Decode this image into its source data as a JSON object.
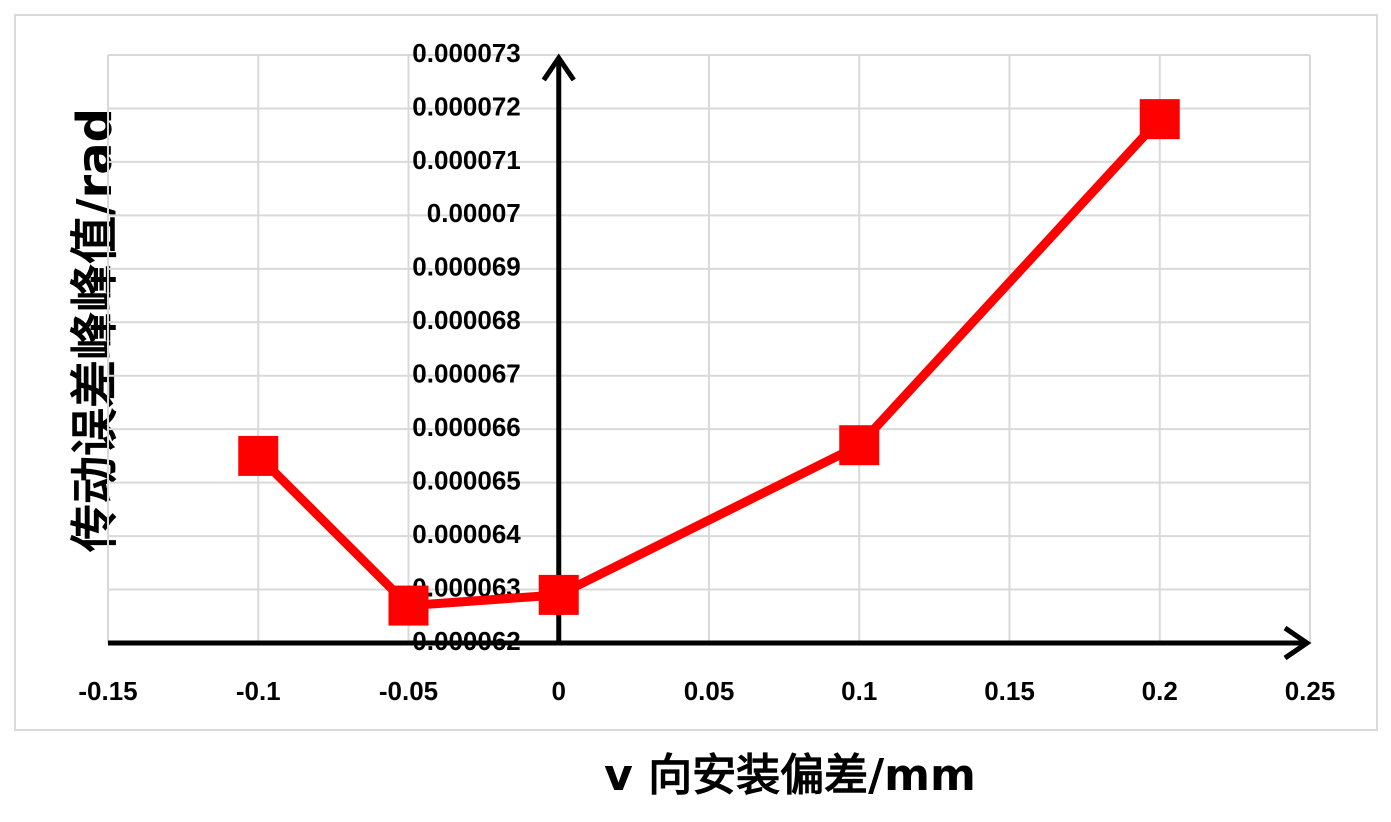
{
  "chart_data": {
    "type": "line",
    "x_label": "v 向安装偏差/mm",
    "y_label": "传动误差峰峰值/rad",
    "x": [
      -0.1,
      -0.05,
      0,
      0.1,
      0.2
    ],
    "series": [
      {
        "name": "传动误差峰峰值",
        "color": "#ff0000",
        "values": [
          6.55e-05,
          6.27e-05,
          6.29e-05,
          6.57e-05,
          7.18e-05
        ]
      }
    ],
    "xlim": [
      -0.15,
      0.25
    ],
    "xticks": [
      -0.15,
      -0.1,
      -0.05,
      0,
      0.05,
      0.1,
      0.15,
      0.2,
      0.25
    ],
    "ylim": [
      6.2e-05,
      7.3e-05
    ],
    "yticks": [
      6.2e-05,
      6.3e-05,
      6.4e-05,
      6.5e-05,
      6.6e-05,
      6.7e-05,
      6.8e-05,
      6.9e-05,
      7e-05,
      7.1e-05,
      7.2e-05,
      7.3e-05
    ],
    "grid": true
  }
}
